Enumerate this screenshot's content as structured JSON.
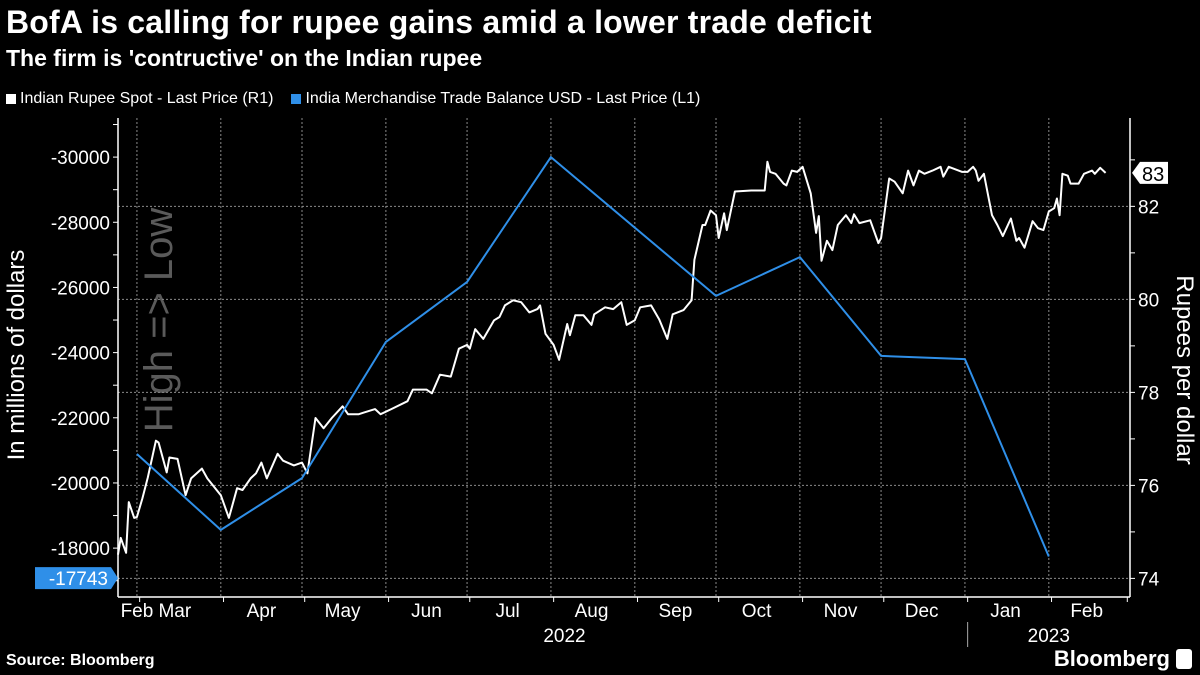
{
  "header": {
    "title": "BofA is calling for rupee gains amid a lower trade deficit",
    "subtitle": "The firm is 'contructive' on the Indian rupee"
  },
  "footer": {
    "source": "Source: Bloomberg",
    "logo": "Bloomberg"
  },
  "colors": {
    "background": "#000000",
    "rupee": "#ffffff",
    "trade": "#2f8fe8",
    "grid": "#8a8a8a"
  },
  "chart_data": {
    "type": "line",
    "title": "BofA is calling for rupee gains amid a lower trade deficit",
    "subtitle": "The firm is 'contructive' on the Indian rupee",
    "legend_position": "top-left",
    "grid": true,
    "x_range": [
      "2022-02-21",
      "2023-03-02"
    ],
    "x_month_labels": [
      {
        "label": "Feb",
        "date": "2022-02-28"
      },
      {
        "label": "Mar",
        "date": "2022-03-14"
      },
      {
        "label": "Apr",
        "date": "2022-04-15"
      },
      {
        "label": "May",
        "date": "2022-05-15"
      },
      {
        "label": "Jun",
        "date": "2022-06-15"
      },
      {
        "label": "Jul",
        "date": "2022-07-15"
      },
      {
        "label": "Aug",
        "date": "2022-08-15"
      },
      {
        "label": "Sep",
        "date": "2022-09-15"
      },
      {
        "label": "Oct",
        "date": "2022-10-15"
      },
      {
        "label": "Nov",
        "date": "2022-11-15"
      },
      {
        "label": "Dec",
        "date": "2022-12-15"
      },
      {
        "label": "Jan",
        "date": "2023-01-15"
      },
      {
        "label": "Feb",
        "date": "2023-02-14"
      }
    ],
    "x_year_labels": [
      {
        "label": "2022",
        "date": "2022-08-05"
      },
      {
        "label": "2023",
        "date": "2023-01-31"
      }
    ],
    "left_axis": {
      "label": "In millions of dollars",
      "watermark": "High => Low",
      "inverted": true,
      "range": [
        -16500,
        -31200
      ],
      "ticks": [
        -30000,
        -28000,
        -26000,
        -24000,
        -22000,
        -20000,
        -18000
      ],
      "tick_labels": [
        "-30000",
        "-28000",
        "-26000",
        "-24000",
        "-22000",
        "-20000",
        "-18000"
      ]
    },
    "right_axis": {
      "label": "Rupees per dollar",
      "range": [
        73.6,
        83.9
      ],
      "ticks": [
        74,
        76,
        78,
        80,
        82
      ],
      "tick_labels": [
        "74",
        "76",
        "78",
        "80",
        "82"
      ]
    },
    "series": [
      {
        "name": "Indian Rupee Spot - Last Price (R1)",
        "axis": "right",
        "color": "#ffffff",
        "last_value_label": "83",
        "points": [
          [
            "2022-02-21",
            74.51
          ],
          [
            "2022-02-22",
            74.87
          ],
          [
            "2022-02-24",
            74.55
          ],
          [
            "2022-02-25",
            75.64
          ],
          [
            "2022-02-27",
            75.3
          ],
          [
            "2022-02-28",
            75.32
          ],
          [
            "2022-03-02",
            75.72
          ],
          [
            "2022-03-04",
            76.17
          ],
          [
            "2022-03-07",
            76.96
          ],
          [
            "2022-03-08",
            76.92
          ],
          [
            "2022-03-11",
            76.28
          ],
          [
            "2022-03-12",
            76.6
          ],
          [
            "2022-03-15",
            76.57
          ],
          [
            "2022-03-18",
            75.79
          ],
          [
            "2022-03-20",
            76.15
          ],
          [
            "2022-03-24",
            76.36
          ],
          [
            "2022-03-26",
            76.15
          ],
          [
            "2022-03-31",
            75.79
          ],
          [
            "2022-04-03",
            75.3
          ],
          [
            "2022-04-06",
            75.94
          ],
          [
            "2022-04-08",
            75.9
          ],
          [
            "2022-04-11",
            76.15
          ],
          [
            "2022-04-13",
            76.26
          ],
          [
            "2022-04-15",
            76.49
          ],
          [
            "2022-04-17",
            76.15
          ],
          [
            "2022-04-21",
            76.68
          ],
          [
            "2022-04-23",
            76.53
          ],
          [
            "2022-04-27",
            76.43
          ],
          [
            "2022-04-30",
            76.49
          ],
          [
            "2022-05-02",
            76.26
          ],
          [
            "2022-05-05",
            77.45
          ],
          [
            "2022-05-08",
            77.23
          ],
          [
            "2022-05-11",
            77.45
          ],
          [
            "2022-05-15",
            77.7
          ],
          [
            "2022-05-17",
            77.53
          ],
          [
            "2022-05-21",
            77.53
          ],
          [
            "2022-05-23",
            77.57
          ],
          [
            "2022-05-27",
            77.64
          ],
          [
            "2022-05-29",
            77.53
          ],
          [
            "2022-06-02",
            77.64
          ],
          [
            "2022-06-08",
            77.81
          ],
          [
            "2022-06-10",
            78.06
          ],
          [
            "2022-06-15",
            78.06
          ],
          [
            "2022-06-17",
            77.98
          ],
          [
            "2022-06-20",
            78.38
          ],
          [
            "2022-06-24",
            78.34
          ],
          [
            "2022-06-27",
            78.94
          ],
          [
            "2022-06-30",
            79.02
          ],
          [
            "2022-07-01",
            78.94
          ],
          [
            "2022-07-03",
            79.36
          ],
          [
            "2022-07-06",
            79.15
          ],
          [
            "2022-07-10",
            79.55
          ],
          [
            "2022-07-12",
            79.62
          ],
          [
            "2022-07-14",
            79.87
          ],
          [
            "2022-07-17",
            79.98
          ],
          [
            "2022-07-20",
            79.94
          ],
          [
            "2022-07-23",
            79.72
          ],
          [
            "2022-07-26",
            79.79
          ],
          [
            "2022-07-27",
            79.87
          ],
          [
            "2022-07-29",
            79.26
          ],
          [
            "2022-08-01",
            79.02
          ],
          [
            "2022-08-03",
            78.7
          ],
          [
            "2022-08-06",
            79.47
          ],
          [
            "2022-08-07",
            79.23
          ],
          [
            "2022-08-09",
            79.66
          ],
          [
            "2022-08-12",
            79.66
          ],
          [
            "2022-08-15",
            79.45
          ],
          [
            "2022-08-16",
            79.68
          ],
          [
            "2022-08-20",
            79.83
          ],
          [
            "2022-08-23",
            79.79
          ],
          [
            "2022-08-26",
            79.94
          ],
          [
            "2022-08-28",
            79.45
          ],
          [
            "2022-08-31",
            79.55
          ],
          [
            "2022-09-02",
            79.83
          ],
          [
            "2022-09-06",
            79.87
          ],
          [
            "2022-09-09",
            79.57
          ],
          [
            "2022-09-12",
            79.15
          ],
          [
            "2022-09-14",
            79.68
          ],
          [
            "2022-09-18",
            79.77
          ],
          [
            "2022-09-21",
            79.98
          ],
          [
            "2022-09-22",
            80.85
          ],
          [
            "2022-09-25",
            81.6
          ],
          [
            "2022-09-26",
            81.6
          ],
          [
            "2022-09-28",
            81.91
          ],
          [
            "2022-09-30",
            81.81
          ],
          [
            "2022-10-01",
            81.32
          ],
          [
            "2022-10-03",
            81.85
          ],
          [
            "2022-10-04",
            81.49
          ],
          [
            "2022-10-07",
            82.32
          ],
          [
            "2022-10-13",
            82.34
          ],
          [
            "2022-10-18",
            82.34
          ],
          [
            "2022-10-19",
            82.96
          ],
          [
            "2022-10-20",
            82.74
          ],
          [
            "2022-10-22",
            82.7
          ],
          [
            "2022-10-25",
            82.49
          ],
          [
            "2022-10-26",
            82.45
          ],
          [
            "2022-10-28",
            82.77
          ],
          [
            "2022-10-30",
            82.74
          ],
          [
            "2022-11-01",
            82.85
          ],
          [
            "2022-11-04",
            82.28
          ],
          [
            "2022-11-06",
            81.43
          ],
          [
            "2022-11-07",
            81.79
          ],
          [
            "2022-11-08",
            80.83
          ],
          [
            "2022-11-10",
            81.26
          ],
          [
            "2022-11-12",
            81.06
          ],
          [
            "2022-11-14",
            81.6
          ],
          [
            "2022-11-17",
            81.81
          ],
          [
            "2022-11-19",
            81.64
          ],
          [
            "2022-11-20",
            81.83
          ],
          [
            "2022-11-22",
            81.64
          ],
          [
            "2022-11-26",
            81.7
          ],
          [
            "2022-11-29",
            81.21
          ],
          [
            "2022-11-30",
            81.32
          ],
          [
            "2022-12-03",
            82.6
          ],
          [
            "2022-12-05",
            82.53
          ],
          [
            "2022-12-08",
            82.28
          ],
          [
            "2022-12-10",
            82.77
          ],
          [
            "2022-12-12",
            82.45
          ],
          [
            "2022-12-14",
            82.77
          ],
          [
            "2022-12-16",
            82.7
          ],
          [
            "2022-12-19",
            82.77
          ],
          [
            "2022-12-22",
            82.85
          ],
          [
            "2022-12-23",
            82.64
          ],
          [
            "2022-12-25",
            82.85
          ],
          [
            "2022-12-30",
            82.74
          ],
          [
            "2023-01-01",
            82.74
          ],
          [
            "2023-01-03",
            82.85
          ],
          [
            "2023-01-04",
            82.77
          ],
          [
            "2023-01-05",
            82.55
          ],
          [
            "2023-01-07",
            82.7
          ],
          [
            "2023-01-10",
            81.81
          ],
          [
            "2023-01-12",
            81.6
          ],
          [
            "2023-01-14",
            81.36
          ],
          [
            "2023-01-17",
            81.74
          ],
          [
            "2023-01-19",
            81.26
          ],
          [
            "2023-01-20",
            81.32
          ],
          [
            "2023-01-22",
            81.11
          ],
          [
            "2023-01-25",
            81.68
          ],
          [
            "2023-01-27",
            81.53
          ],
          [
            "2023-01-29",
            81.49
          ],
          [
            "2023-01-31",
            81.89
          ],
          [
            "2023-02-02",
            81.96
          ],
          [
            "2023-02-03",
            82.17
          ],
          [
            "2023-02-04",
            81.81
          ],
          [
            "2023-02-05",
            82.7
          ],
          [
            "2023-02-07",
            82.66
          ],
          [
            "2023-02-08",
            82.49
          ],
          [
            "2023-02-11",
            82.49
          ],
          [
            "2023-02-13",
            82.7
          ],
          [
            "2023-02-16",
            82.77
          ],
          [
            "2023-02-17",
            82.7
          ],
          [
            "2023-02-19",
            82.83
          ],
          [
            "2023-02-21",
            82.72
          ]
        ]
      },
      {
        "name": "India Merchandise Trade Balance USD - Last Price (L1)",
        "axis": "left",
        "color": "#2f8fe8",
        "last_value_label": "-17743",
        "points": [
          [
            "2022-02-28",
            -20890
          ],
          [
            "2022-03-31",
            -18560
          ],
          [
            "2022-04-30",
            -20150
          ],
          [
            "2022-05-31",
            -24330
          ],
          [
            "2022-06-30",
            -26170
          ],
          [
            "2022-07-31",
            -30000
          ],
          [
            "2022-09-30",
            -25740
          ],
          [
            "2022-10-31",
            -26930
          ],
          [
            "2022-11-30",
            -23900
          ],
          [
            "2022-12-31",
            -23800
          ],
          [
            "2023-01-31",
            -17743
          ]
        ]
      }
    ]
  }
}
